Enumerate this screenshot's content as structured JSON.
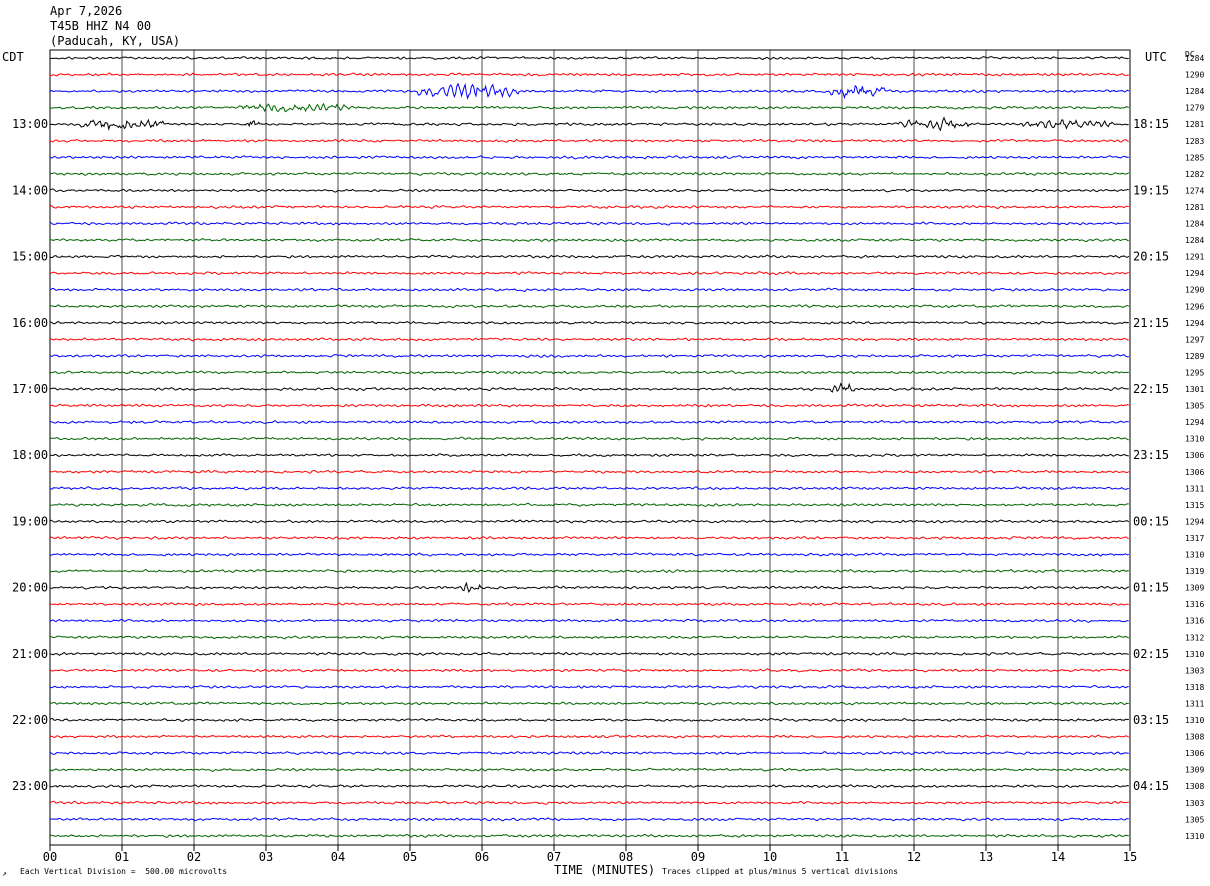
{
  "header": {
    "date": "Apr 7,2026",
    "station": "T45B HHZ N4 00",
    "location": "(Paducah, KY, USA)"
  },
  "left_zone": "CDT",
  "right_zone": "UTC",
  "dc_label": "DC",
  "footer": {
    "scale_note": "Each Vertical Division =  500.00 microvolts",
    "clip_note": "Traces clipped at plus/minus 5 vertical divisions",
    "corner_mark": "↗"
  },
  "colors": {
    "trace_cycle": [
      "#000000",
      "#ff0000",
      "#0000ff",
      "#006400"
    ],
    "grid": "#000000"
  },
  "chart_data": {
    "type": "line",
    "title": "",
    "xlabel": "TIME (MINUTES)",
    "ylabel": "",
    "x_ticks": [
      "00",
      "01",
      "02",
      "03",
      "04",
      "05",
      "06",
      "07",
      "08",
      "09",
      "10",
      "11",
      "12",
      "13",
      "14",
      "15"
    ],
    "xlim": [
      0,
      15
    ],
    "left_hour_labels": [
      "13:00",
      "14:00",
      "15:00",
      "16:00",
      "17:00",
      "18:00",
      "19:00",
      "20:00",
      "21:00",
      "22:00",
      "23:00"
    ],
    "right_hour_labels": [
      "18:15",
      "19:15",
      "20:15",
      "21:15",
      "22:15",
      "23:15",
      "00:15",
      "01:15",
      "02:15",
      "03:15",
      "04:15"
    ],
    "first_labeled_trace_index": 4,
    "traces_per_hour": 4,
    "dc_offsets": [
      1284,
      1290,
      1284,
      1279,
      1281,
      1283,
      1285,
      1282,
      1274,
      1281,
      1284,
      1284,
      1291,
      1294,
      1290,
      1296,
      1294,
      1297,
      1289,
      1295,
      1301,
      1305,
      1294,
      1310,
      1306,
      1306,
      1311,
      1315,
      1294,
      1317,
      1310,
      1319,
      1309,
      1316,
      1316,
      1312,
      1310,
      1303,
      1318,
      1311,
      1310,
      1308,
      1306,
      1309,
      1308,
      1303,
      1305,
      1310
    ],
    "events": [
      {
        "trace": 2,
        "minute_start": 5.1,
        "minute_end": 6.5,
        "amplitude": 3.5
      },
      {
        "trace": 2,
        "minute_start": 10.8,
        "minute_end": 11.6,
        "amplitude": 3.5
      },
      {
        "trace": 3,
        "minute_start": 2.6,
        "minute_end": 4.2,
        "amplitude": 2.0
      },
      {
        "trace": 4,
        "minute_start": 0.4,
        "minute_end": 1.6,
        "amplitude": 3.0
      },
      {
        "trace": 4,
        "minute_start": 2.7,
        "minute_end": 2.9,
        "amplitude": 2.5
      },
      {
        "trace": 4,
        "minute_start": 11.8,
        "minute_end": 12.8,
        "amplitude": 2.5
      },
      {
        "trace": 4,
        "minute_start": 13.5,
        "minute_end": 14.8,
        "amplitude": 2.0
      },
      {
        "trace": 20,
        "minute_start": 10.8,
        "minute_end": 11.2,
        "amplitude": 3.0
      },
      {
        "trace": 32,
        "minute_start": 5.7,
        "minute_end": 6.0,
        "amplitude": 2.5
      }
    ]
  }
}
